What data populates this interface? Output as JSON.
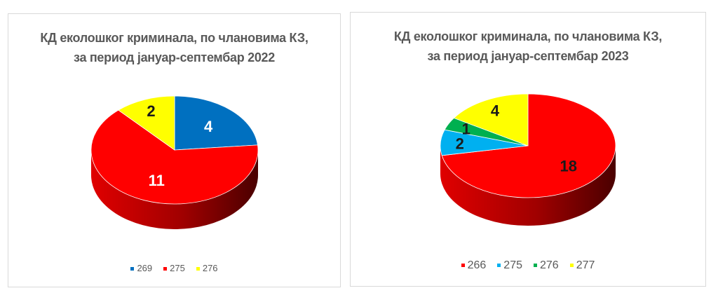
{
  "chart_data": [
    {
      "type": "pie",
      "title": "КД еколошког криминала, по члановима КЗ,",
      "subtitle": "за период јануар-септембар 2022",
      "categories": [
        "269",
        "275",
        "276"
      ],
      "values": [
        4,
        11,
        2
      ],
      "colors": [
        "#0070c0",
        "#ff0000",
        "#ffff00"
      ],
      "label_colors": [
        "#ffffff",
        "#ffffff",
        "#1a1a1a"
      ],
      "style": "3d",
      "legend": "bottom"
    },
    {
      "type": "pie",
      "title": "КД еколошког криминала, по члановима КЗ,",
      "subtitle": "за период јануар-септембар 2023",
      "categories": [
        "266",
        "275",
        "276",
        "277"
      ],
      "values": [
        18,
        2,
        1,
        4
      ],
      "colors": [
        "#ff0000",
        "#00b0f0",
        "#00b050",
        "#ffff00"
      ],
      "label_colors": [
        "#1a1a1a",
        "#1a1a1a",
        "#1a1a1a",
        "#1a1a1a"
      ],
      "style": "3d",
      "legend": "bottom"
    }
  ]
}
